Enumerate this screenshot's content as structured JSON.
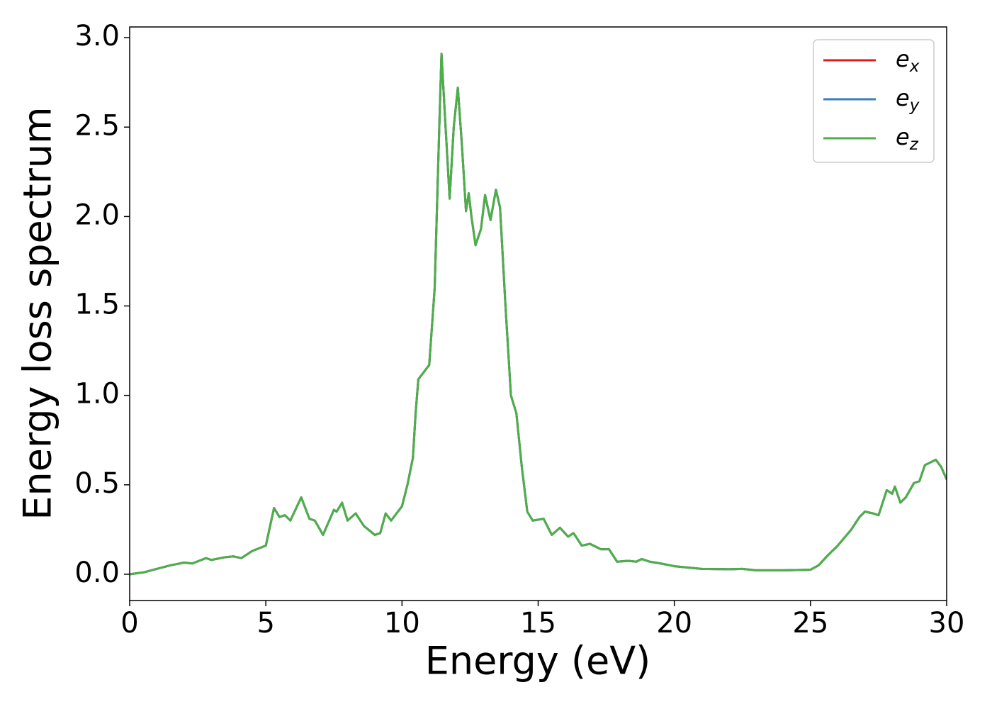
{
  "chart_data": {
    "type": "line",
    "xlabel": "Energy (eV)",
    "ylabel": "Energy loss spectrum",
    "x": [
      0,
      0.5,
      1,
      1.5,
      2,
      2.3,
      2.8,
      3,
      3.5,
      3.8,
      4.1,
      4.5,
      5,
      5.3,
      5.5,
      5.7,
      5.9,
      6.3,
      6.6,
      6.8,
      7.1,
      7.5,
      7.6,
      7.8,
      8.0,
      8.3,
      8.6,
      9.0,
      9.2,
      9.4,
      9.6,
      10.0,
      10.2,
      10.4,
      10.5,
      10.6,
      10.8,
      11.0,
      11.2,
      11.35,
      11.45,
      11.6,
      11.75,
      11.9,
      12.05,
      12.2,
      12.35,
      12.45,
      12.55,
      12.7,
      12.9,
      13.05,
      13.25,
      13.45,
      13.6,
      13.8,
      14.0,
      14.2,
      14.4,
      14.6,
      14.8,
      15.2,
      15.5,
      15.8,
      16.1,
      16.3,
      16.6,
      16.9,
      17.3,
      17.6,
      17.9,
      18.3,
      18.6,
      18.8,
      19.1,
      19.5,
      20,
      21,
      22,
      22.5,
      23,
      24,
      25,
      25.3,
      25.6,
      26.0,
      26.5,
      26.8,
      27.0,
      27.3,
      27.5,
      27.8,
      28.0,
      28.1,
      28.3,
      28.5,
      28.8,
      29.0,
      29.2,
      29.6,
      29.8,
      30
    ],
    "series": [
      {
        "name": "e_x",
        "color": "#e41a1c",
        "values": [
          0.0,
          0.01,
          0.03,
          0.05,
          0.065,
          0.06,
          0.09,
          0.08,
          0.095,
          0.1,
          0.09,
          0.13,
          0.16,
          0.37,
          0.32,
          0.33,
          0.3,
          0.43,
          0.31,
          0.3,
          0.22,
          0.36,
          0.35,
          0.4,
          0.3,
          0.34,
          0.27,
          0.22,
          0.23,
          0.34,
          0.3,
          0.38,
          0.5,
          0.65,
          0.9,
          1.09,
          1.13,
          1.17,
          1.6,
          2.4,
          2.91,
          2.5,
          2.1,
          2.5,
          2.72,
          2.4,
          2.03,
          2.13,
          2.0,
          1.84,
          1.93,
          2.12,
          1.98,
          2.15,
          2.05,
          1.5,
          1.0,
          0.9,
          0.6,
          0.35,
          0.3,
          0.31,
          0.22,
          0.26,
          0.21,
          0.23,
          0.16,
          0.17,
          0.14,
          0.14,
          0.07,
          0.075,
          0.07,
          0.085,
          0.07,
          0.06,
          0.045,
          0.03,
          0.028,
          0.03,
          0.022,
          0.022,
          0.025,
          0.05,
          0.1,
          0.16,
          0.25,
          0.32,
          0.35,
          0.34,
          0.33,
          0.47,
          0.45,
          0.49,
          0.4,
          0.43,
          0.51,
          0.52,
          0.61,
          0.64,
          0.6,
          0.53
        ]
      },
      {
        "name": "e_y",
        "color": "#377eb8",
        "values": [
          0.0,
          0.01,
          0.03,
          0.05,
          0.065,
          0.06,
          0.09,
          0.08,
          0.095,
          0.1,
          0.09,
          0.13,
          0.16,
          0.37,
          0.32,
          0.33,
          0.3,
          0.43,
          0.31,
          0.3,
          0.22,
          0.36,
          0.35,
          0.4,
          0.3,
          0.34,
          0.27,
          0.22,
          0.23,
          0.34,
          0.3,
          0.38,
          0.5,
          0.65,
          0.9,
          1.09,
          1.13,
          1.17,
          1.6,
          2.4,
          2.91,
          2.5,
          2.1,
          2.5,
          2.72,
          2.4,
          2.03,
          2.13,
          2.0,
          1.84,
          1.93,
          2.12,
          1.98,
          2.15,
          2.05,
          1.5,
          1.0,
          0.9,
          0.6,
          0.35,
          0.3,
          0.31,
          0.22,
          0.26,
          0.21,
          0.23,
          0.16,
          0.17,
          0.14,
          0.14,
          0.07,
          0.075,
          0.07,
          0.085,
          0.07,
          0.06,
          0.045,
          0.03,
          0.028,
          0.03,
          0.022,
          0.022,
          0.025,
          0.05,
          0.1,
          0.16,
          0.25,
          0.32,
          0.35,
          0.34,
          0.33,
          0.47,
          0.45,
          0.49,
          0.4,
          0.43,
          0.51,
          0.52,
          0.61,
          0.64,
          0.6,
          0.53
        ]
      },
      {
        "name": "e_z",
        "color": "#4daf4a",
        "values": [
          0.0,
          0.01,
          0.03,
          0.05,
          0.065,
          0.06,
          0.09,
          0.08,
          0.095,
          0.1,
          0.09,
          0.13,
          0.16,
          0.37,
          0.32,
          0.33,
          0.3,
          0.43,
          0.31,
          0.3,
          0.22,
          0.36,
          0.35,
          0.4,
          0.3,
          0.34,
          0.27,
          0.22,
          0.23,
          0.34,
          0.3,
          0.38,
          0.5,
          0.65,
          0.9,
          1.09,
          1.13,
          1.17,
          1.6,
          2.4,
          2.91,
          2.5,
          2.1,
          2.5,
          2.72,
          2.4,
          2.03,
          2.13,
          2.0,
          1.84,
          1.93,
          2.12,
          1.98,
          2.15,
          2.05,
          1.5,
          1.0,
          0.9,
          0.6,
          0.35,
          0.3,
          0.31,
          0.22,
          0.26,
          0.21,
          0.23,
          0.16,
          0.17,
          0.14,
          0.14,
          0.07,
          0.075,
          0.07,
          0.085,
          0.07,
          0.06,
          0.045,
          0.03,
          0.028,
          0.03,
          0.022,
          0.022,
          0.025,
          0.05,
          0.1,
          0.16,
          0.25,
          0.32,
          0.35,
          0.34,
          0.33,
          0.47,
          0.45,
          0.49,
          0.4,
          0.43,
          0.51,
          0.52,
          0.61,
          0.64,
          0.6,
          0.53
        ]
      }
    ],
    "xlim": [
      0,
      30
    ],
    "xticks": [
      0,
      5,
      10,
      15,
      20,
      25,
      30
    ],
    "ylim": [
      -0.147,
      3.06
    ],
    "yticks": [
      {
        "value": 0,
        "label": "0.0"
      },
      0.5,
      {
        "value": 1,
        "label": "1.0"
      },
      1.5,
      {
        "value": 2,
        "label": "2.0"
      },
      2.5,
      {
        "value": 3,
        "label": "3.0"
      }
    ],
    "grid": false,
    "legend": "upper right"
  }
}
